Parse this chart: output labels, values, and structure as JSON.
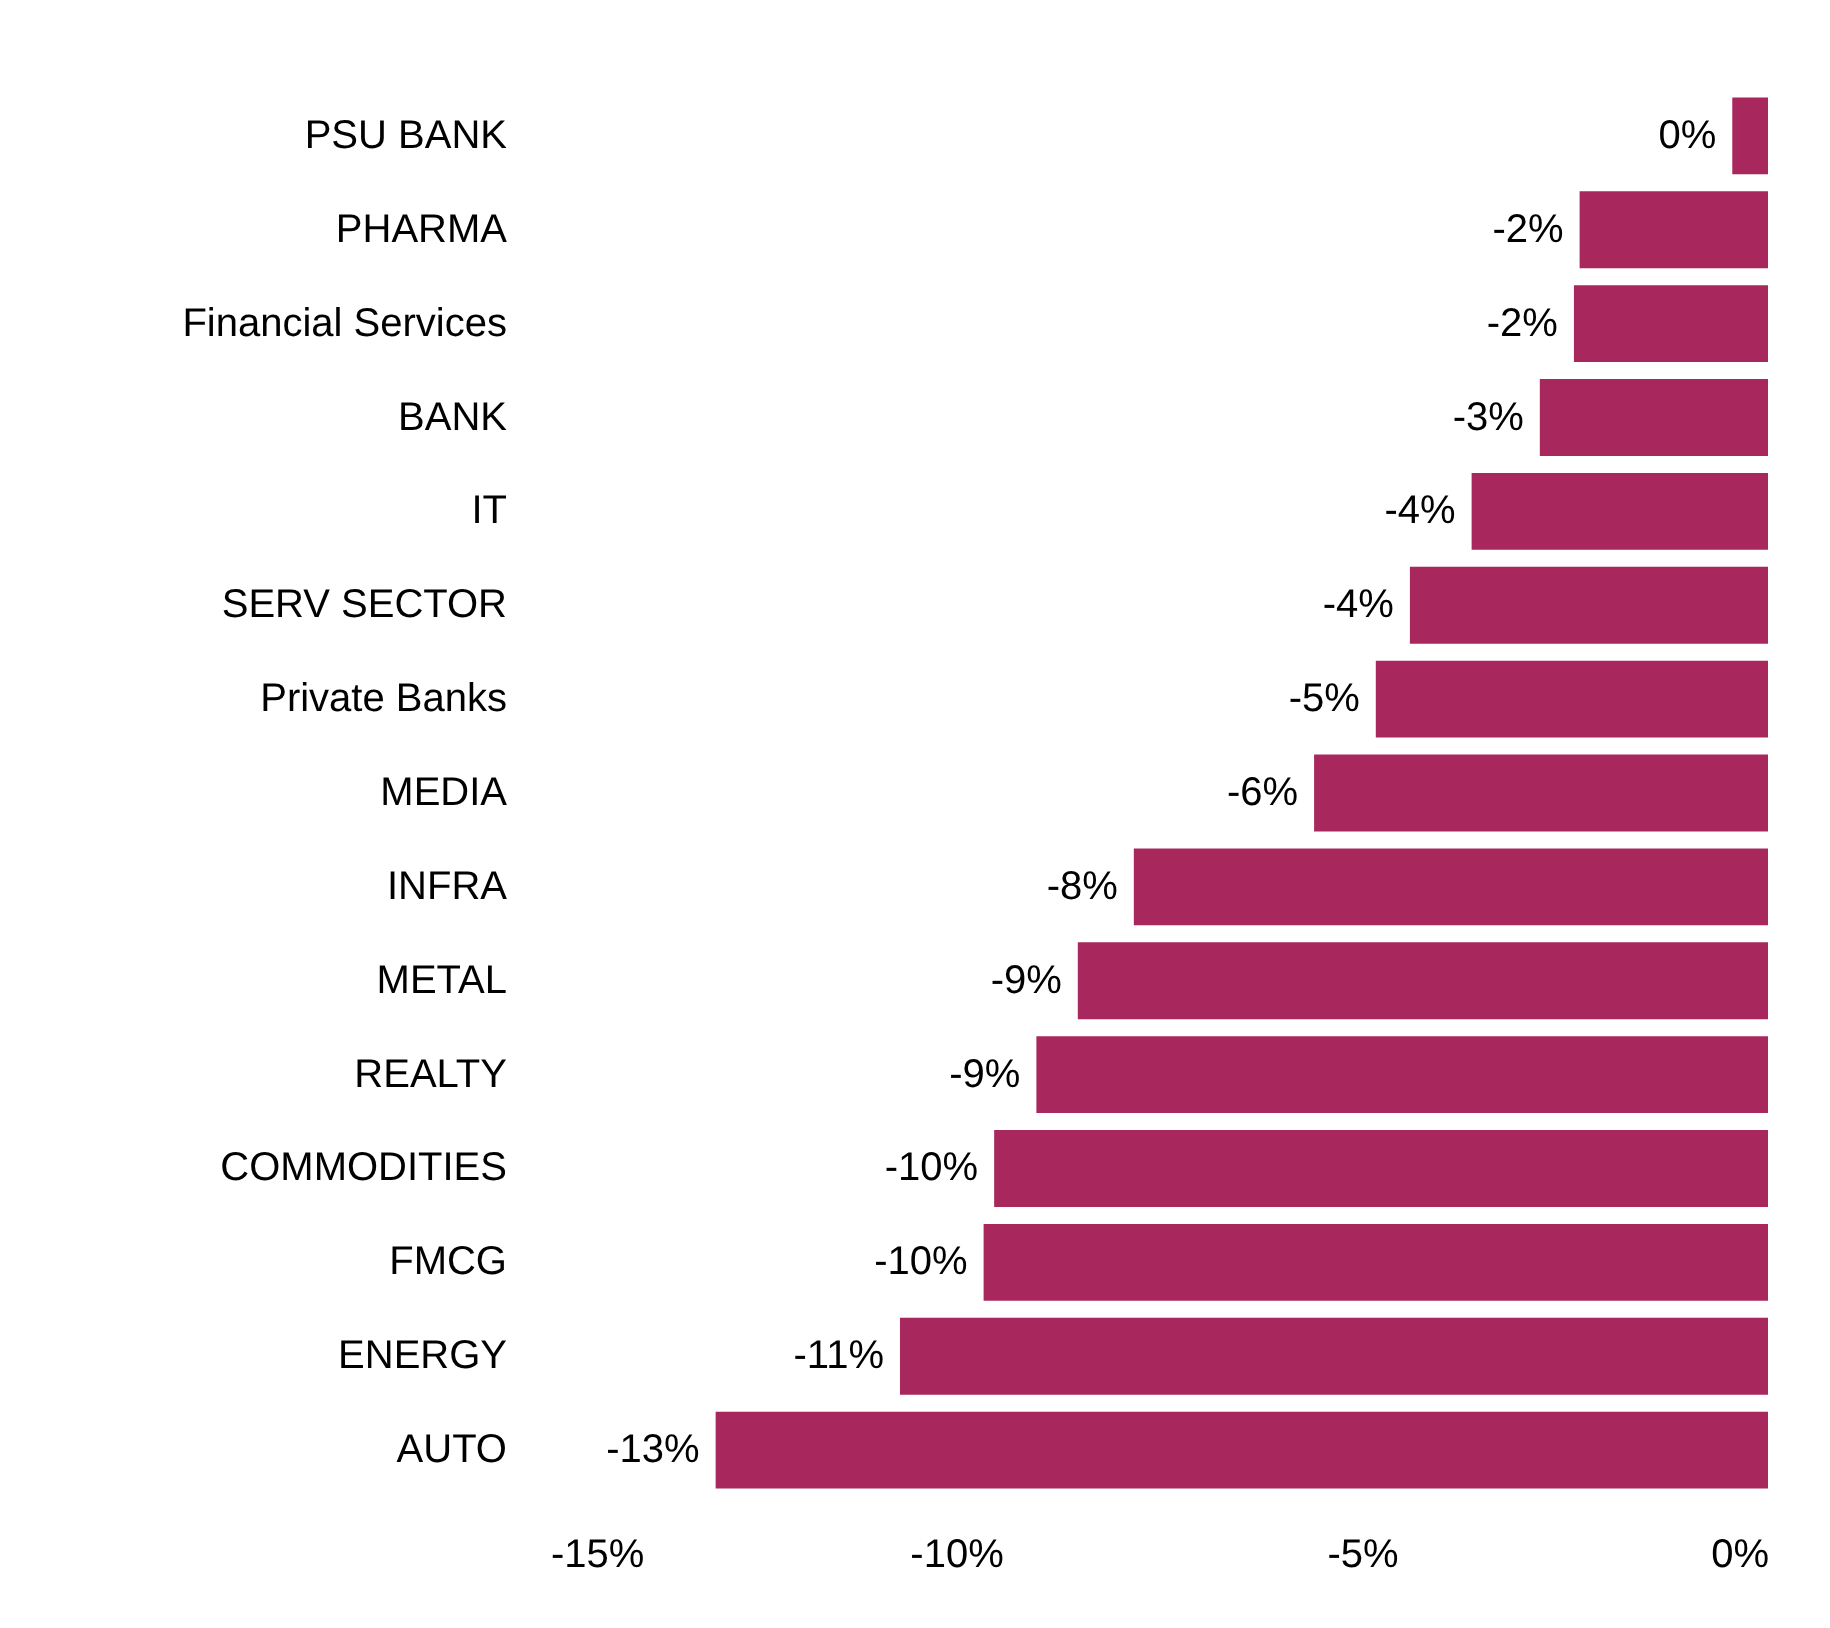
{
  "chart_data": {
    "type": "bar",
    "orientation": "horizontal",
    "categories": [
      "PSU BANK",
      "PHARMA",
      "Financial Services",
      "BANK",
      "IT",
      "SERV SECTOR",
      "Private Banks",
      "MEDIA",
      "INFRA",
      "METAL",
      "REALTY",
      "COMMODITIES",
      "FMCG",
      "ENERGY",
      "AUTO"
    ],
    "values": [
      -0.44,
      -2.32,
      -2.39,
      -2.81,
      -3.65,
      -4.41,
      -4.83,
      -5.59,
      -7.81,
      -8.5,
      -9.01,
      -9.53,
      -9.66,
      -10.69,
      -12.96
    ],
    "value_labels": [
      "0%",
      "-2%",
      "-2%",
      "-3%",
      "-4%",
      "-4%",
      "-5%",
      "-6%",
      "-8%",
      "-9%",
      "-9%",
      "-10%",
      "-10%",
      "-11%",
      "-13%"
    ],
    "color": "#a8275c",
    "xlim": [
      -15,
      0
    ],
    "xticks": [
      {
        "value": -15,
        "label": "-15%"
      },
      {
        "value": -10,
        "label": "-10%"
      },
      {
        "value": -5,
        "label": "-5%"
      },
      {
        "value": 0,
        "label": "0%"
      }
    ]
  }
}
